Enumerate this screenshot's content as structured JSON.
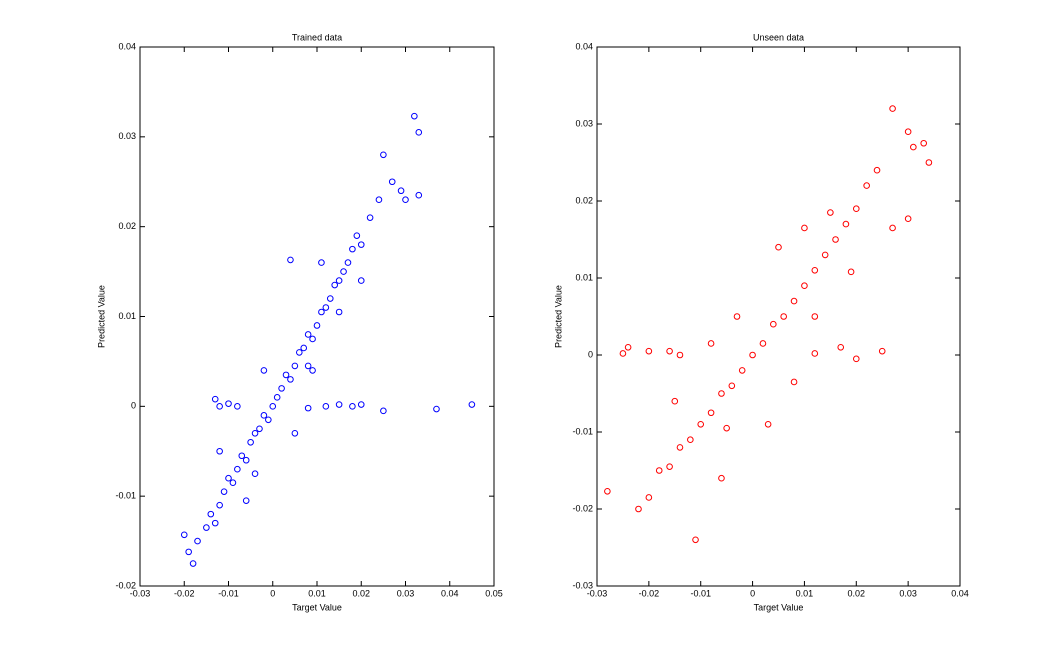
{
  "chart_data": [
    {
      "type": "scatter",
      "title": "Trained data",
      "x_label": "Target Value",
      "y_label": "Predicted Value",
      "xlim": [
        -0.03,
        0.05
      ],
      "ylim": [
        -0.02,
        0.04
      ],
      "xticks": [
        -0.03,
        -0.02,
        -0.01,
        0,
        0.01,
        0.02,
        0.03,
        0.04,
        0.05
      ],
      "yticks": [
        -0.02,
        -0.01,
        0,
        0.01,
        0.02,
        0.03,
        0.04
      ],
      "series": [
        {
          "color": "#0000ff",
          "x": [
            -0.02,
            -0.019,
            -0.018,
            -0.017,
            -0.015,
            -0.014,
            -0.013,
            -0.012,
            -0.011,
            -0.01,
            -0.009,
            -0.008,
            -0.007,
            -0.006,
            -0.005,
            -0.004,
            -0.003,
            -0.002,
            -0.001,
            0,
            0.001,
            0.002,
            0.003,
            0.004,
            0.005,
            0.006,
            0.007,
            0.008,
            0.009,
            0.01,
            0.011,
            0.012,
            0.013,
            0.014,
            0.015,
            0.016,
            0.017,
            0.018,
            0.019,
            0.02,
            0.022,
            0.024,
            0.025,
            0.027,
            0.029,
            0.03,
            0.032,
            0.033,
            0.033,
            0.004,
            -0.013,
            -0.012,
            -0.01,
            -0.008,
            0.008,
            0.012,
            0.015,
            0.018,
            0.02,
            0.025,
            0.037,
            0.045,
            0.008,
            0.009,
            -0.004,
            -0.002,
            -0.012,
            0.005,
            -0.006,
            0.011,
            0.015,
            0.02
          ],
          "values": [
            -0.0143,
            -0.0162,
            -0.0175,
            -0.015,
            -0.0135,
            -0.012,
            -0.013,
            -0.011,
            -0.0095,
            -0.008,
            -0.0085,
            -0.007,
            -0.0055,
            -0.006,
            -0.004,
            -0.003,
            -0.0025,
            -0.001,
            -0.0015,
            0,
            0.001,
            0.002,
            0.0035,
            0.003,
            0.0045,
            0.006,
            0.0065,
            0.008,
            0.0075,
            0.009,
            0.0105,
            0.011,
            0.012,
            0.0135,
            0.014,
            0.015,
            0.016,
            0.0175,
            0.019,
            0.018,
            0.021,
            0.023,
            0.028,
            0.025,
            0.024,
            0.023,
            0.0323,
            0.0305,
            0.0235,
            0.0163,
            0.0008,
            0,
            0.0003,
            0,
            -0.0002,
            0,
            0.0002,
            0,
            0.0002,
            -0.0005,
            -0.0003,
            0.0002,
            0.0045,
            0.004,
            -0.0075,
            0.004,
            -0.005,
            -0.003,
            -0.0105,
            0.016,
            0.0105,
            0.014
          ]
        }
      ]
    },
    {
      "type": "scatter",
      "title": "Unseen data",
      "x_label": "Target Value",
      "y_label": "Predicted Value",
      "xlim": [
        -0.03,
        0.04
      ],
      "ylim": [
        -0.03,
        0.04
      ],
      "xticks": [
        -0.03,
        -0.02,
        -0.01,
        0,
        0.01,
        0.02,
        0.03,
        0.04
      ],
      "yticks": [
        -0.03,
        -0.02,
        -0.01,
        0,
        0.01,
        0.02,
        0.03,
        0.04
      ],
      "series": [
        {
          "color": "#ff0000",
          "x": [
            -0.028,
            -0.022,
            -0.02,
            -0.018,
            -0.016,
            -0.014,
            -0.012,
            -0.01,
            -0.008,
            -0.006,
            -0.004,
            -0.002,
            0,
            0.002,
            0.004,
            0.006,
            0.008,
            0.01,
            0.012,
            0.014,
            0.016,
            0.018,
            0.02,
            0.022,
            0.024,
            0.027,
            0.03,
            0.031,
            0.033,
            0.034,
            0.03,
            0.027,
            -0.011,
            -0.025,
            -0.024,
            -0.02,
            -0.016,
            -0.014,
            0.012,
            0.017,
            0.02,
            0.025,
            -0.006,
            0.003,
            -0.003,
            0.005,
            0.012,
            -0.008,
            0.01,
            0.019,
            0.015,
            -0.015,
            0.008,
            -0.005
          ],
          "values": [
            -0.0177,
            -0.02,
            -0.0185,
            -0.015,
            -0.0145,
            -0.012,
            -0.011,
            -0.009,
            -0.0075,
            -0.005,
            -0.004,
            -0.002,
            0,
            0.0015,
            0.004,
            0.005,
            0.007,
            0.009,
            0.011,
            0.013,
            0.015,
            0.017,
            0.019,
            0.022,
            0.024,
            0.032,
            0.029,
            0.027,
            0.0275,
            0.025,
            0.0177,
            0.0165,
            -0.024,
            0.0002,
            0.001,
            0.0005,
            0.0005,
            0,
            0.0002,
            0.001,
            -0.0005,
            0.0005,
            -0.016,
            -0.009,
            0.005,
            0.014,
            0.005,
            0.0015,
            0.0165,
            0.0108,
            0.0185,
            -0.006,
            -0.0035,
            -0.0095
          ]
        }
      ]
    }
  ]
}
